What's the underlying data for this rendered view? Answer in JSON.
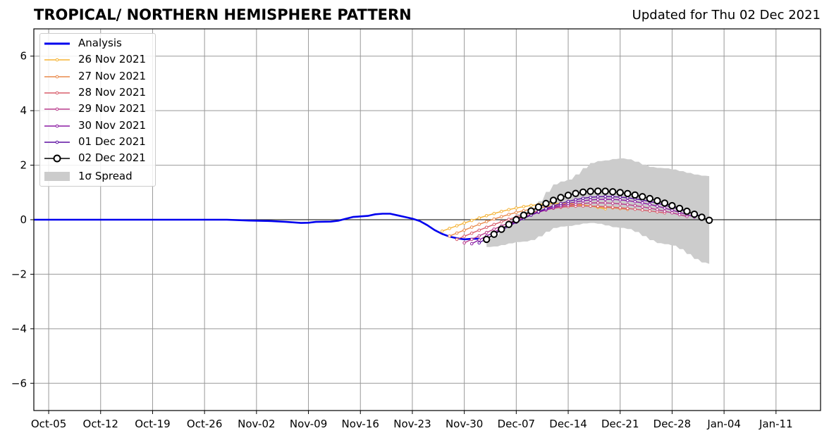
{
  "header": {
    "title": "TROPICAL/ NORTHERN HEMISPHERE PATTERN",
    "updated": "Updated for Thu 02 Dec 2021"
  },
  "legend": {
    "analysis": "Analysis",
    "f1": "26 Nov 2021",
    "f2": "27 Nov 2021",
    "f3": "28 Nov 2021",
    "f4": "29 Nov 2021",
    "f5": "30 Nov 2021",
    "f6": "01 Dec 2021",
    "f7": "02 Dec 2021",
    "spread": "1σ Spread"
  },
  "chart_data": {
    "type": "line",
    "title": "TROPICAL/ NORTHERN HEMISPHERE PATTERN",
    "subtitle": "Updated for Thu 02 Dec 2021",
    "xlabel": "",
    "ylabel": "",
    "xlim": [
      "2021-10-03",
      "2022-01-17"
    ],
    "ylim": [
      -7,
      7
    ],
    "grid": true,
    "legend_position": "top-left",
    "x_ticks": [
      "Oct-05",
      "Oct-12",
      "Oct-19",
      "Oct-26",
      "Nov-02",
      "Nov-09",
      "Nov-16",
      "Nov-23",
      "Nov-30",
      "Dec-07",
      "Dec-14",
      "Dec-21",
      "Dec-28",
      "Jan-04",
      "Jan-11"
    ],
    "x_tick_dates": [
      "2021-10-05",
      "2021-10-12",
      "2021-10-19",
      "2021-10-26",
      "2021-11-02",
      "2021-11-09",
      "2021-11-16",
      "2021-11-23",
      "2021-11-30",
      "2021-12-07",
      "2021-12-14",
      "2021-12-21",
      "2021-12-28",
      "2022-01-04",
      "2022-01-11"
    ],
    "y_ticks": [
      -6,
      -4,
      -2,
      0,
      2,
      4,
      6
    ],
    "y_tick_labels": [
      "−6",
      "−4",
      "−2",
      "0",
      "2",
      "4",
      "6"
    ],
    "analysis": {
      "name": "Analysis",
      "color": "#0000ee",
      "points": [
        [
          "2021-10-03",
          0.0
        ],
        [
          "2021-10-15",
          0.0
        ],
        [
          "2021-10-29",
          0.0
        ],
        [
          "2021-11-01",
          -0.03
        ],
        [
          "2021-11-04",
          -0.05
        ],
        [
          "2021-11-06",
          -0.08
        ],
        [
          "2021-11-08",
          -0.12
        ],
        [
          "2021-11-09",
          -0.11
        ],
        [
          "2021-11-10",
          -0.08
        ],
        [
          "2021-11-12",
          -0.07
        ],
        [
          "2021-11-13",
          -0.04
        ],
        [
          "2021-11-14",
          0.03
        ],
        [
          "2021-11-15",
          0.1
        ],
        [
          "2021-11-17",
          0.14
        ],
        [
          "2021-11-18",
          0.2
        ],
        [
          "2021-11-19",
          0.22
        ],
        [
          "2021-11-20",
          0.22
        ],
        [
          "2021-11-21",
          0.16
        ],
        [
          "2021-11-22",
          0.1
        ],
        [
          "2021-11-23",
          0.04
        ],
        [
          "2021-11-24",
          -0.05
        ],
        [
          "2021-11-25",
          -0.2
        ],
        [
          "2021-11-26",
          -0.38
        ],
        [
          "2021-11-27",
          -0.52
        ],
        [
          "2021-11-28",
          -0.62
        ],
        [
          "2021-11-29",
          -0.68
        ],
        [
          "2021-11-30",
          -0.72
        ],
        [
          "2021-12-01",
          -0.7
        ],
        [
          "2021-12-02",
          -0.7
        ]
      ]
    },
    "forecasts": [
      {
        "name": "26 Nov 2021",
        "color": "#f5b335",
        "start": "2021-11-27",
        "end": "2021-12-19",
        "start_value": -0.42,
        "peak_date": "2021-12-13",
        "peak_value": 0.6,
        "end_value": 0.4
      },
      {
        "name": "27 Nov 2021",
        "color": "#ea8a4b",
        "start": "2021-11-28",
        "end": "2021-12-22",
        "start_value": -0.6,
        "peak_date": "2021-12-14",
        "peak_value": 0.52,
        "end_value": 0.38
      },
      {
        "name": "28 Nov 2021",
        "color": "#d85e6c",
        "start": "2021-11-29",
        "end": "2021-12-27",
        "start_value": -0.72,
        "peak_date": "2021-12-16",
        "peak_value": 0.5,
        "end_value": 0.25
      },
      {
        "name": "29 Nov 2021",
        "color": "#b93b8c",
        "start": "2021-11-30",
        "end": "2021-12-30",
        "start_value": -0.85,
        "peak_date": "2021-12-18",
        "peak_value": 0.62,
        "end_value": 0.12
      },
      {
        "name": "30 Nov 2021",
        "color": "#8c1ba3",
        "start": "2021-12-01",
        "end": "2021-12-31",
        "start_value": -0.88,
        "peak_date": "2021-12-19",
        "peak_value": 0.75,
        "end_value": 0.1
      },
      {
        "name": "01 Dec 2021",
        "color": "#5d0fa0",
        "start": "2021-12-02",
        "end": "2022-01-01",
        "start_value": -0.85,
        "peak_date": "2021-12-19",
        "peak_value": 0.85,
        "end_value": 0.12
      },
      {
        "name": "02 Dec 2021",
        "color": "#000000",
        "start": "2021-12-03",
        "end": "2022-01-02",
        "start_value": -0.72,
        "peak_date": "2021-12-18",
        "peak_value": 1.05,
        "end_value": -0.02
      }
    ],
    "spread": {
      "name": "1σ Spread",
      "color": "#cccccc",
      "start": "2021-12-03",
      "end": "2022-01-02",
      "upper": [
        [
          "2021-12-03",
          -0.7
        ],
        [
          "2021-12-08",
          0.3
        ],
        [
          "2021-12-13",
          1.4
        ],
        [
          "2021-12-18",
          2.15
        ],
        [
          "2021-12-21",
          2.25
        ],
        [
          "2021-12-26",
          1.9
        ],
        [
          "2022-01-02",
          1.6
        ]
      ],
      "lower": [
        [
          "2021-12-03",
          -1.0
        ],
        [
          "2021-12-08",
          -0.8
        ],
        [
          "2021-12-13",
          -0.25
        ],
        [
          "2021-12-17",
          -0.12
        ],
        [
          "2021-12-21",
          -0.3
        ],
        [
          "2021-12-27",
          -0.9
        ],
        [
          "2022-01-02",
          -1.62
        ]
      ]
    }
  }
}
